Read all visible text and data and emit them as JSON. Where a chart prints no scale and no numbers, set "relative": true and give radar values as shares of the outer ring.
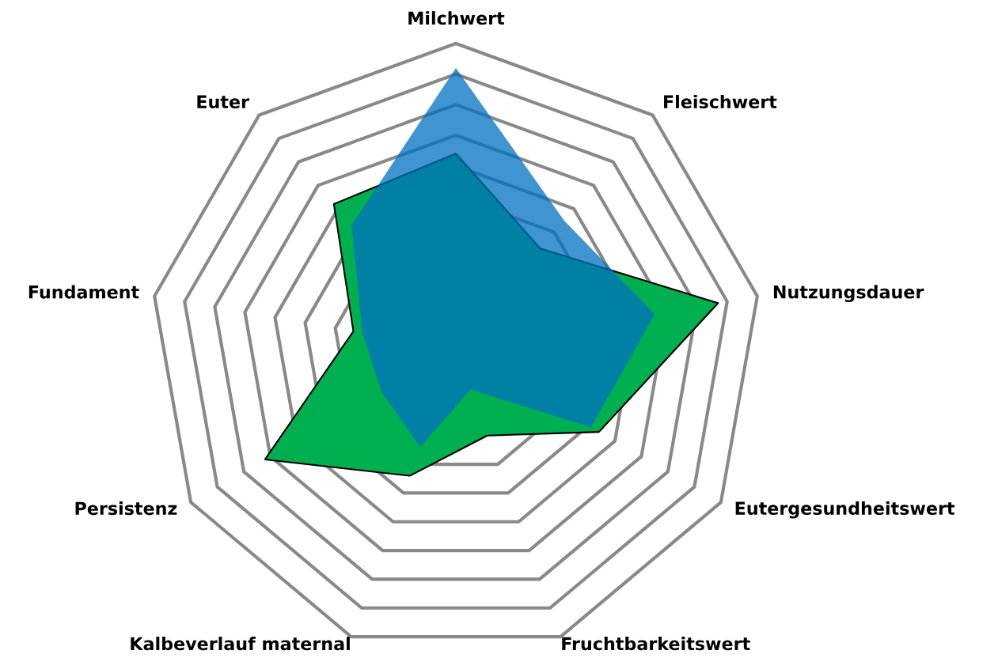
{
  "chart_data": {
    "type": "radar",
    "relative": true,
    "categories": [
      "Milchwert",
      "Fleischwert",
      "Nutzungsdauer",
      "Eutergesundheitswert",
      "Fruchtbarkeitswert",
      "Kalbeverlauf maternal",
      "Persistenz",
      "Fundament",
      "Euter"
    ],
    "series": [
      {
        "color": "#00b050",
        "values": [
          0.64,
          0.43,
          0.87,
          0.54,
          0.3,
          0.44,
          0.72,
          0.34,
          0.62
        ]
      },
      {
        "color": "#0070c0",
        "values": [
          0.92,
          0.55,
          0.66,
          0.51,
          0.14,
          0.34,
          0.28,
          0.31,
          0.53
        ]
      }
    ],
    "grid": true
  }
}
